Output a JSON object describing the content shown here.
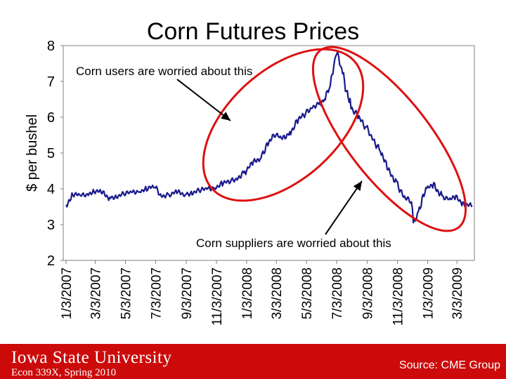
{
  "slide": {
    "title": "Corn Futures Prices"
  },
  "chart_data": {
    "type": "line",
    "title": "Corn Futures Prices",
    "ylabel": "$ per bushel",
    "xlabel": "",
    "ylim": [
      2,
      8
    ],
    "yticks": [
      2,
      3,
      4,
      5,
      6,
      7,
      8
    ],
    "x_start": "1/3/2007",
    "x_end": "4/3/2009",
    "x_tick_labels": [
      "1/3/2007",
      "3/3/2007",
      "5/3/2007",
      "7/3/2007",
      "9/3/2007",
      "11/3/2007",
      "1/3/2008",
      "3/3/2008",
      "5/3/2008",
      "7/3/2008",
      "9/3/2008",
      "11/3/2008",
      "1/3/2009",
      "3/3/2009"
    ],
    "grid": false,
    "line_color": "#1a1a8c",
    "series": [
      {
        "x": [
          "1/3/2007",
          "1/17/2007",
          "2/1/2007",
          "2/15/2007",
          "3/1/2007",
          "3/15/2007",
          "4/1/2007",
          "4/15/2007",
          "5/1/2007",
          "5/15/2007",
          "6/1/2007",
          "6/15/2007",
          "7/1/2007",
          "7/15/2007",
          "8/1/2007",
          "8/15/2007",
          "9/1/2007",
          "9/15/2007",
          "10/1/2007",
          "10/15/2007",
          "11/1/2007",
          "11/15/2007",
          "12/1/2007",
          "12/15/2007",
          "1/1/2008",
          "1/15/2008",
          "2/1/2008",
          "2/15/2008",
          "3/1/2008",
          "3/15/2008",
          "4/1/2008",
          "4/15/2008",
          "5/1/2008",
          "5/15/2008",
          "6/1/2008",
          "6/10/2008",
          "6/20/2008",
          "6/27/2008",
          "7/3/2008",
          "7/15/2008",
          "8/1/2008",
          "8/15/2008",
          "9/1/2008",
          "9/15/2008",
          "10/1/2008",
          "10/15/2008",
          "11/1/2008",
          "11/15/2008",
          "12/1/2008",
          "12/5/2008",
          "12/15/2008",
          "1/1/2009",
          "1/15/2009",
          "2/1/2009",
          "2/15/2009",
          "3/1/2009",
          "3/15/2009",
          "4/3/2009"
        ],
        "values": [
          3.55,
          3.85,
          3.8,
          3.85,
          3.95,
          3.9,
          3.75,
          3.8,
          3.85,
          3.9,
          3.95,
          4.0,
          4.05,
          3.8,
          3.85,
          3.9,
          3.85,
          3.9,
          3.95,
          4.0,
          4.05,
          4.15,
          4.2,
          4.3,
          4.5,
          4.7,
          4.9,
          5.3,
          5.5,
          5.4,
          5.6,
          5.9,
          6.1,
          6.3,
          6.4,
          6.5,
          6.9,
          7.5,
          7.8,
          7.2,
          6.3,
          6.0,
          5.7,
          5.4,
          5.0,
          4.5,
          4.2,
          3.8,
          3.6,
          3.0,
          3.4,
          4.0,
          4.1,
          3.8,
          3.7,
          3.75,
          3.6,
          3.5
        ]
      }
    ],
    "annotations": [
      {
        "text": "Corn users are worried about this"
      },
      {
        "text": "Corn suppliers are worried about this"
      }
    ],
    "highlight_color": "#dd1111",
    "arrow_color": "#000000"
  },
  "footer": {
    "university": "Iowa State University",
    "course": "Econ 339X, Spring 2010",
    "source": "Source: CME Group",
    "bg_color": "#cc0a0a"
  }
}
